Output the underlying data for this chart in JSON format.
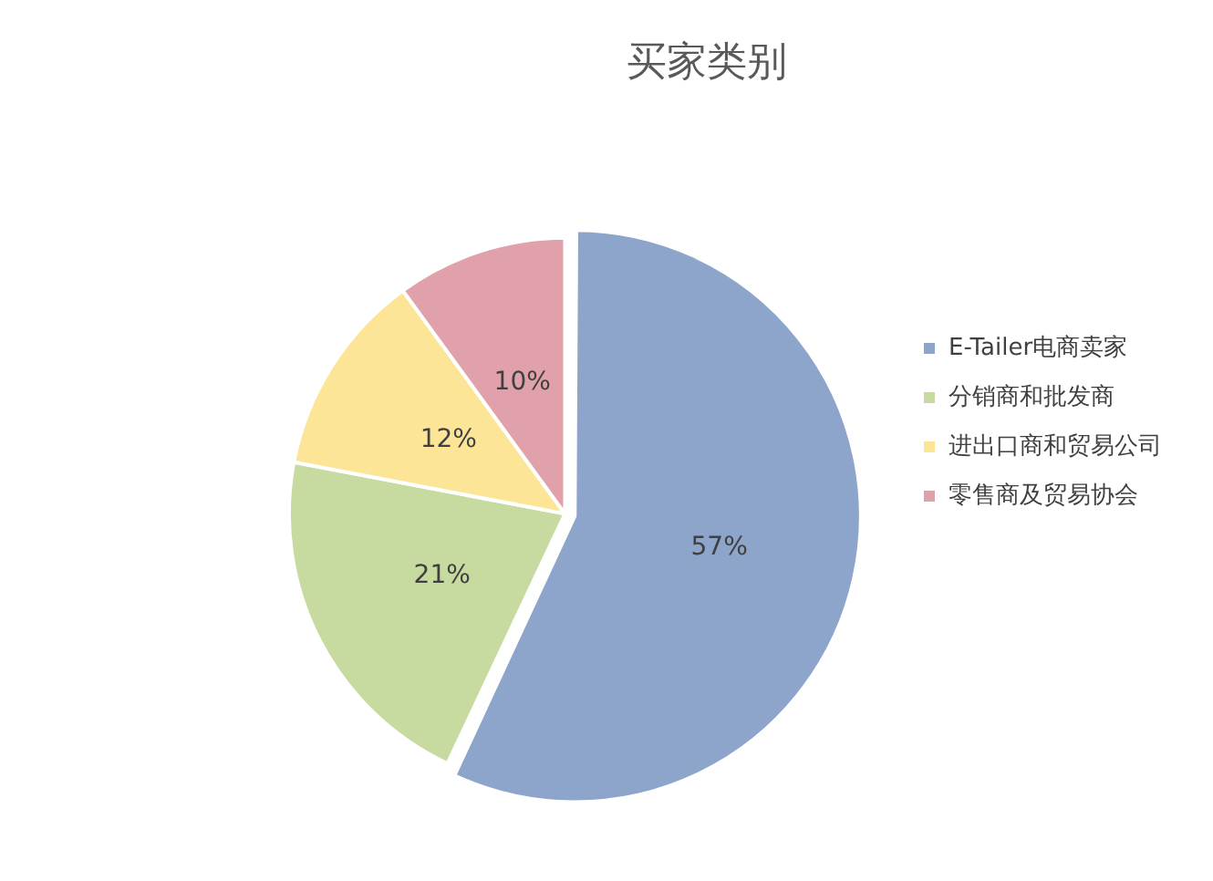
{
  "chart_data": {
    "type": "pie",
    "title": "买家类别",
    "categories": [
      "E-Tailer电商卖家",
      "分销商和批发商",
      "进出口商和贸易公司",
      "零售商及贸易协会"
    ],
    "values": [
      57,
      21,
      12,
      10
    ],
    "colors": [
      "#8da5cb",
      "#c7da9f",
      "#fde597",
      "#e0a1aa"
    ],
    "value_labels": [
      "57%",
      "21%",
      "12%",
      "10%"
    ],
    "legend": "right"
  }
}
